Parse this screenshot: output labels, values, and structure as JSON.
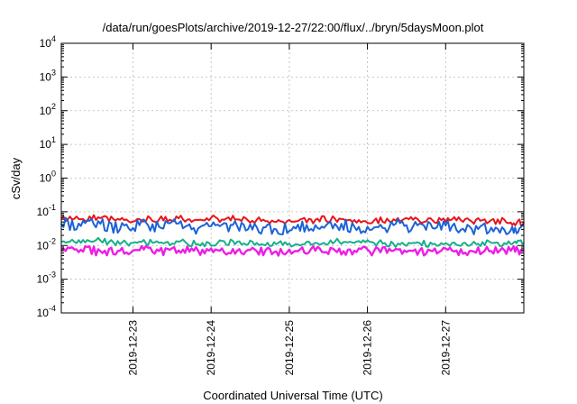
{
  "chart_data": {
    "type": "line",
    "title": "/data/run/goesPlots/archive/2019-12-27/22:00/flux/../bryn/5daysMoon.plot",
    "xlabel": "Coordinated Universal Time (UTC)",
    "ylabel": "cSv/day",
    "y_scale": "log",
    "ylim": [
      0.0001,
      10000
    ],
    "y_ticks": [
      {
        "value": 0.0001,
        "base": "10",
        "exp": "-4"
      },
      {
        "value": 0.001,
        "base": "10",
        "exp": "-3"
      },
      {
        "value": 0.01,
        "base": "10",
        "exp": "-2"
      },
      {
        "value": 0.1,
        "base": "10",
        "exp": "-1"
      },
      {
        "value": 1,
        "base": "10",
        "exp": "0"
      },
      {
        "value": 10,
        "base": "10",
        "exp": "1"
      },
      {
        "value": 100,
        "base": "10",
        "exp": "2"
      },
      {
        "value": 1000,
        "base": "10",
        "exp": "3"
      },
      {
        "value": 10000,
        "base": "10",
        "exp": "4"
      }
    ],
    "xlim": [
      "2019-12-22T02:00",
      "2019-12-28T00:00"
    ],
    "x_ticks": [
      "2019-12-23",
      "2019-12-24",
      "2019-12-25",
      "2019-12-26",
      "2019-12-27"
    ],
    "grid": true,
    "legend": "none",
    "series": [
      {
        "color": "#e8151b",
        "x": [
          "2019-12-22T02:00",
          "2019-12-22T08:00",
          "2019-12-22T14:00",
          "2019-12-22T20:00",
          "2019-12-23T02:00",
          "2019-12-23T08:00",
          "2019-12-23T14:00",
          "2019-12-23T20:00",
          "2019-12-24T02:00",
          "2019-12-24T08:00",
          "2019-12-24T14:00",
          "2019-12-24T20:00",
          "2019-12-25T02:00",
          "2019-12-25T08:00",
          "2019-12-25T14:00",
          "2019-12-25T20:00",
          "2019-12-26T02:00",
          "2019-12-26T08:00",
          "2019-12-26T14:00",
          "2019-12-26T20:00",
          "2019-12-27T02:00",
          "2019-12-27T08:00",
          "2019-12-27T14:00",
          "2019-12-27T20:00",
          "2019-12-28T00:00"
        ],
        "values": [
          0.062,
          0.06,
          0.065,
          0.058,
          0.061,
          0.059,
          0.064,
          0.057,
          0.063,
          0.06,
          0.058,
          0.05,
          0.052,
          0.058,
          0.062,
          0.057,
          0.055,
          0.06,
          0.058,
          0.056,
          0.06,
          0.052,
          0.057,
          0.048,
          0.05
        ]
      },
      {
        "color": "#1a63d8",
        "x": [
          "2019-12-22T02:00",
          "2019-12-22T08:00",
          "2019-12-22T14:00",
          "2019-12-22T20:00",
          "2019-12-23T02:00",
          "2019-12-23T08:00",
          "2019-12-23T14:00",
          "2019-12-23T20:00",
          "2019-12-24T02:00",
          "2019-12-24T08:00",
          "2019-12-24T14:00",
          "2019-12-24T20:00",
          "2019-12-25T02:00",
          "2019-12-25T08:00",
          "2019-12-25T14:00",
          "2019-12-25T20:00",
          "2019-12-26T02:00",
          "2019-12-26T08:00",
          "2019-12-26T14:00",
          "2019-12-26T20:00",
          "2019-12-27T02:00",
          "2019-12-27T08:00",
          "2019-12-27T14:00",
          "2019-12-27T20:00",
          "2019-12-28T00:00"
        ],
        "values": [
          0.045,
          0.038,
          0.044,
          0.03,
          0.04,
          0.036,
          0.045,
          0.032,
          0.042,
          0.038,
          0.035,
          0.03,
          0.032,
          0.04,
          0.044,
          0.036,
          0.034,
          0.04,
          0.037,
          0.033,
          0.038,
          0.031,
          0.034,
          0.028,
          0.04
        ]
      },
      {
        "color": "#16b08a",
        "x": [
          "2019-12-22T02:00",
          "2019-12-22T08:00",
          "2019-12-22T14:00",
          "2019-12-22T20:00",
          "2019-12-23T02:00",
          "2019-12-23T08:00",
          "2019-12-23T14:00",
          "2019-12-23T20:00",
          "2019-12-24T02:00",
          "2019-12-24T08:00",
          "2019-12-24T14:00",
          "2019-12-24T20:00",
          "2019-12-25T02:00",
          "2019-12-25T08:00",
          "2019-12-25T14:00",
          "2019-12-25T20:00",
          "2019-12-26T02:00",
          "2019-12-26T08:00",
          "2019-12-26T14:00",
          "2019-12-26T20:00",
          "2019-12-27T02:00",
          "2019-12-27T08:00",
          "2019-12-27T14:00",
          "2019-12-27T20:00",
          "2019-12-28T00:00"
        ],
        "values": [
          0.013,
          0.012,
          0.014,
          0.011,
          0.013,
          0.012,
          0.013,
          0.011,
          0.012,
          0.013,
          0.012,
          0.011,
          0.011,
          0.012,
          0.013,
          0.012,
          0.012,
          0.011,
          0.012,
          0.011,
          0.012,
          0.011,
          0.012,
          0.011,
          0.012
        ]
      },
      {
        "color": "#ee1ee6",
        "x": [
          "2019-12-22T02:00",
          "2019-12-22T08:00",
          "2019-12-22T14:00",
          "2019-12-22T20:00",
          "2019-12-23T02:00",
          "2019-12-23T08:00",
          "2019-12-23T14:00",
          "2019-12-23T20:00",
          "2019-12-24T02:00",
          "2019-12-24T08:00",
          "2019-12-24T14:00",
          "2019-12-24T20:00",
          "2019-12-25T02:00",
          "2019-12-25T08:00",
          "2019-12-25T14:00",
          "2019-12-25T20:00",
          "2019-12-26T02:00",
          "2019-12-26T08:00",
          "2019-12-26T14:00",
          "2019-12-26T20:00",
          "2019-12-27T02:00",
          "2019-12-27T08:00",
          "2019-12-27T14:00",
          "2019-12-27T20:00",
          "2019-12-28T00:00"
        ],
        "values": [
          0.007,
          0.0075,
          0.0068,
          0.007,
          0.0072,
          0.0069,
          0.0071,
          0.007,
          0.0073,
          0.007,
          0.0068,
          0.0067,
          0.0069,
          0.007,
          0.0072,
          0.007,
          0.0068,
          0.007,
          0.0069,
          0.0068,
          0.007,
          0.0069,
          0.0068,
          0.007,
          0.0071
        ]
      }
    ]
  }
}
